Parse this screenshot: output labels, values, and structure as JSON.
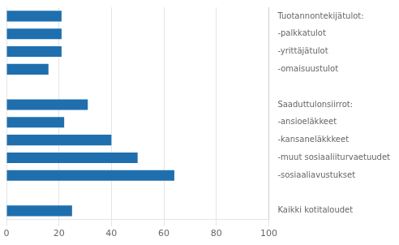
{
  "chart_data": {
    "type": "bar",
    "orientation": "horizontal",
    "categories": [
      "Tuotannontekijätulot:",
      "-palkkatulot",
      "-yrittäjätulot",
      "-omaisuustulot",
      null,
      "Saaduttulonsiirrot:",
      "-ansioeläkkeet",
      "-kansaneläkkkeet",
      "-muut sosiaaliiturvaetuudet",
      "-sosiaaliavustukset",
      null,
      "Kaikki kotitaloudet"
    ],
    "values": [
      21,
      21,
      21,
      16,
      0,
      31,
      22,
      40,
      50,
      64,
      0,
      25
    ],
    "color": "#1F6FAE",
    "xlim": [
      0,
      100
    ],
    "xticks": [
      0,
      20,
      40,
      60,
      80,
      100
    ],
    "grid": true
  }
}
